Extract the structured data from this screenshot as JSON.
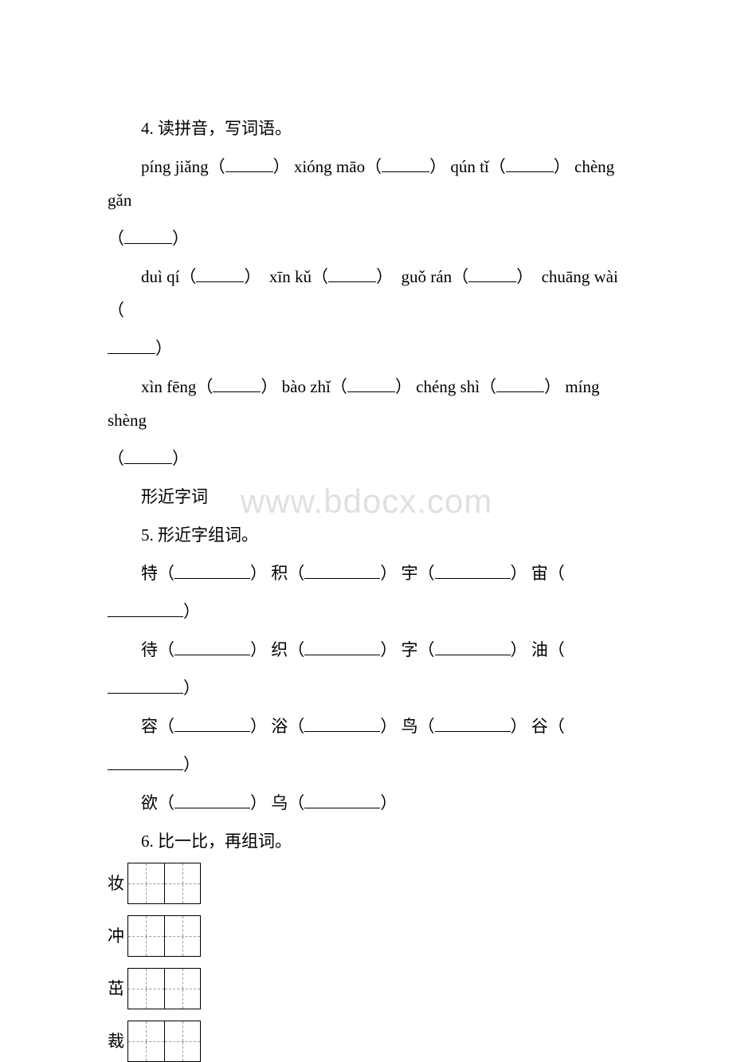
{
  "watermark": "www.bdocx.com",
  "q4": {
    "title": "4. 读拼音，写词语。",
    "lines": [
      {
        "items": [
          {
            "pinyin": "píng jiǎng",
            "after": ""
          },
          {
            "pinyin": "xióng māo",
            "after": ""
          },
          {
            "pinyin": "qún tǐ",
            "after": ""
          },
          {
            "pinyin": "chèng gǎn",
            "after": "",
            "wrap": true
          }
        ]
      },
      {
        "items": [
          {
            "pinyin": "duì qí",
            "after": ""
          },
          {
            "pinyin": "xīn kǔ",
            "after": ""
          },
          {
            "pinyin": "guǒ rán",
            "after": ""
          },
          {
            "pinyin": "chuāng wài",
            "after": "",
            "wrap": true
          }
        ]
      },
      {
        "items": [
          {
            "pinyin": "xìn fēng",
            "after": ""
          },
          {
            "pinyin": "bào zhǐ",
            "after": ""
          },
          {
            "pinyin": "chéng shì",
            "after": ""
          },
          {
            "pinyin": "míng shèng",
            "after": "",
            "wrap": true
          }
        ]
      }
    ]
  },
  "section_title": "形近字词",
  "q5": {
    "title": "5. 形近字组词。",
    "rows": [
      [
        "特",
        "积",
        "宇",
        "宙"
      ],
      [
        "待",
        "织",
        "字",
        "油"
      ],
      [
        "容",
        "浴",
        "鸟",
        "谷"
      ],
      [
        "欲",
        "乌"
      ]
    ]
  },
  "q6": {
    "title": "6. 比一比，再组词。",
    "chars": [
      "妆",
      "冲",
      "茁",
      "裁"
    ]
  },
  "colors": {
    "text": "#000000",
    "background": "#ffffff",
    "watermark": "#e0e0e0",
    "grid_dash": "#999999"
  }
}
